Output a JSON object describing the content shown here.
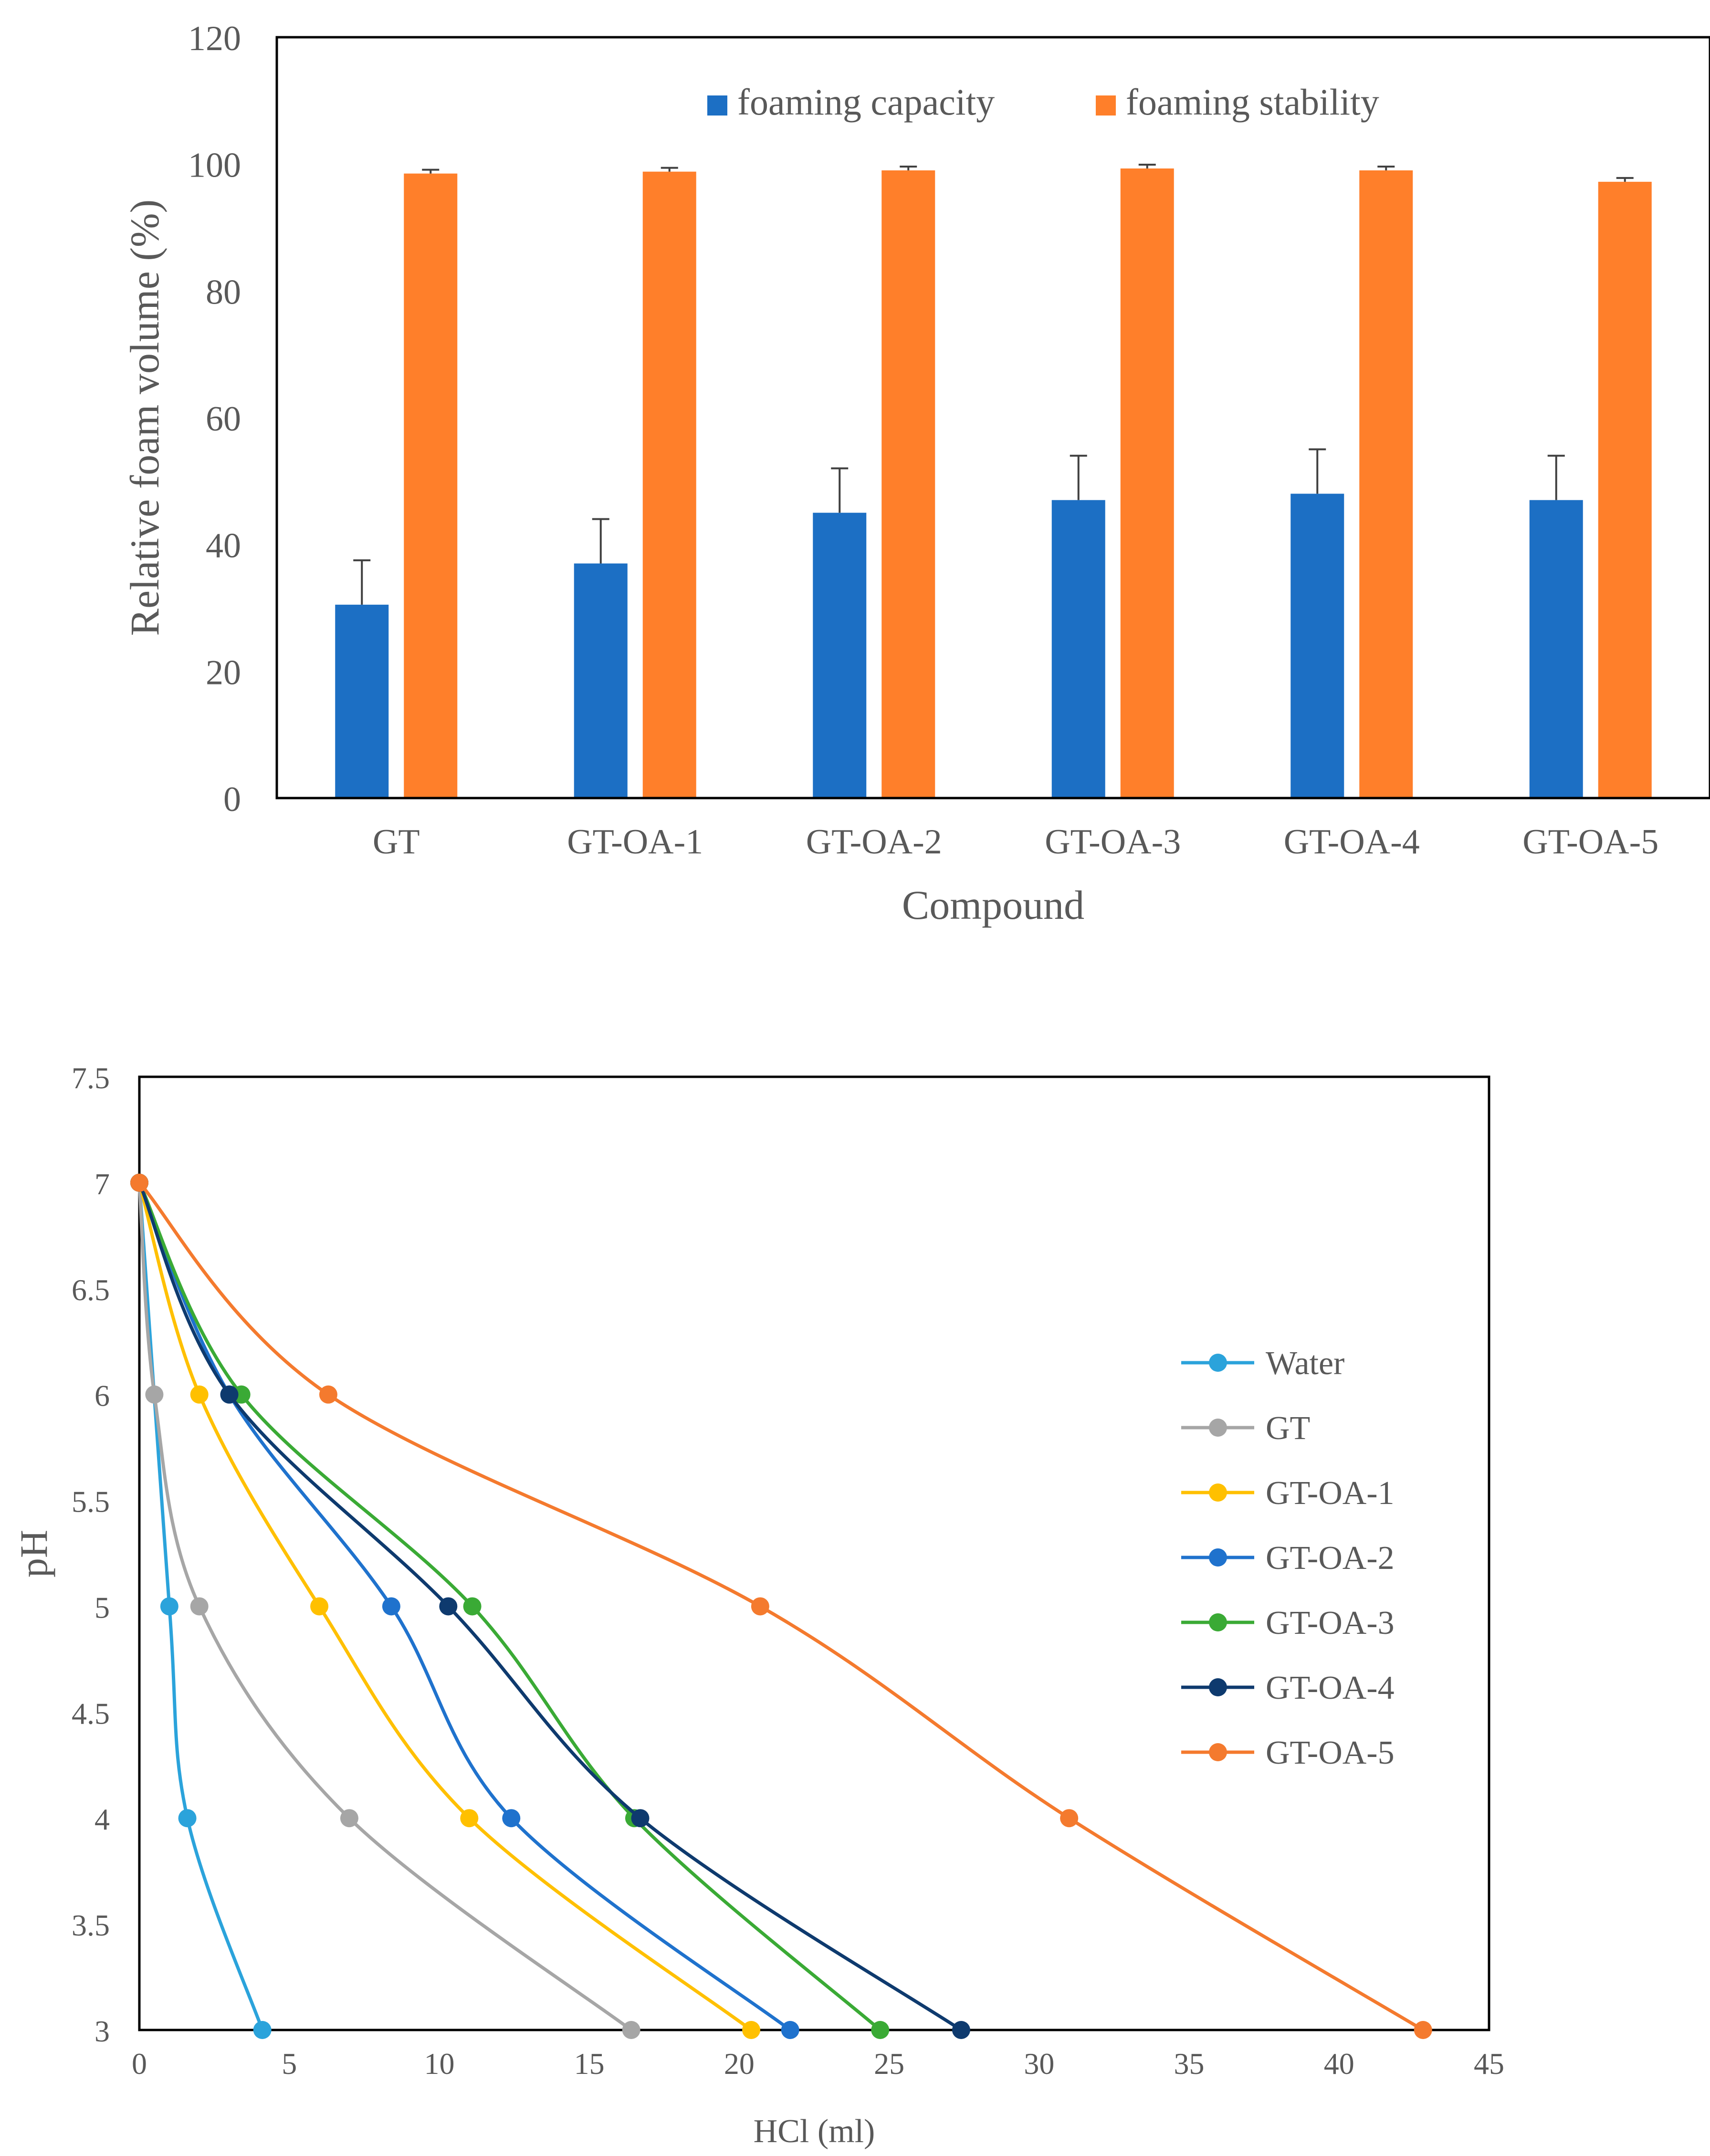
{
  "colors": {
    "foaming_capacity": "#1C6FC4",
    "foaming_stability": "#FF7F2A",
    "Water": "#2BA3DB",
    "GT": "#A6A6A6",
    "GT-OA-1": "#FFC000",
    "GT-OA-2": "#1F72CD",
    "GT-OA-3": "#3AAA35",
    "GT-OA-4": "#0E3A6E",
    "GT-OA-5": "#F47A2E",
    "axis": "#000000",
    "label": "#595959"
  },
  "chart_data": [
    {
      "type": "bar",
      "title": "",
      "xlabel": "Compound",
      "ylabel": "Relative foam volume (%)",
      "ylim": [
        0,
        120
      ],
      "yticks": [
        "0",
        "20",
        "40",
        "60",
        "80",
        "100",
        "120"
      ],
      "categories": [
        "GT",
        "GT-OA-1",
        "GT-OA-2",
        "GT-OA-3",
        "GT-OA-4",
        "GT-OA-5"
      ],
      "legend_position": "top-center",
      "series": [
        {
          "name": "foaming capacity",
          "values": [
            30.5,
            37,
            45,
            47,
            48,
            47
          ],
          "errors": [
            7,
            7,
            7,
            7,
            7,
            7
          ]
        },
        {
          "name": "foaming stability",
          "values": [
            98.5,
            98.8,
            99,
            99.3,
            99,
            97.2
          ],
          "errors": [
            0.6,
            0.6,
            0.6,
            0.6,
            0.6,
            0.6
          ]
        }
      ]
    },
    {
      "type": "line",
      "title": "",
      "xlabel": "HCl (ml)",
      "ylabel": "pH",
      "xlim": [
        0,
        45
      ],
      "ylim": [
        3,
        7.5
      ],
      "xticks": [
        "0",
        "5",
        "10",
        "15",
        "20",
        "25",
        "30",
        "35",
        "40",
        "45"
      ],
      "yticks": [
        "3",
        "3.5",
        "4",
        "4.5",
        "5",
        "5.5",
        "6",
        "6.5",
        "7",
        "7.5"
      ],
      "legend_position": "right",
      "series": [
        {
          "name": "Water",
          "x": [
            0,
            1.0,
            1.6,
            4.1
          ],
          "y": [
            7,
            5,
            4,
            3
          ]
        },
        {
          "name": "GT",
          "x": [
            0,
            0.5,
            2.0,
            7.0,
            16.4
          ],
          "y": [
            7,
            6,
            5,
            4,
            3
          ]
        },
        {
          "name": "GT-OA-1",
          "x": [
            0,
            2.0,
            6.0,
            11.0,
            20.4
          ],
          "y": [
            7,
            6,
            5,
            4,
            3
          ]
        },
        {
          "name": "GT-OA-2",
          "x": [
            0,
            3.0,
            8.4,
            12.4,
            21.7
          ],
          "y": [
            7,
            6,
            5,
            4,
            3
          ]
        },
        {
          "name": "GT-OA-3",
          "x": [
            0,
            3.4,
            11.1,
            16.5,
            24.7
          ],
          "y": [
            7,
            6,
            5,
            4,
            3
          ]
        },
        {
          "name": "GT-OA-4",
          "x": [
            0,
            3.0,
            10.3,
            16.7,
            27.4
          ],
          "y": [
            7,
            6,
            5,
            4,
            3
          ]
        },
        {
          "name": "GT-OA-5",
          "x": [
            0,
            6.3,
            20.7,
            31.0,
            42.8
          ],
          "y": [
            7,
            6,
            5,
            4,
            3
          ]
        }
      ]
    }
  ]
}
